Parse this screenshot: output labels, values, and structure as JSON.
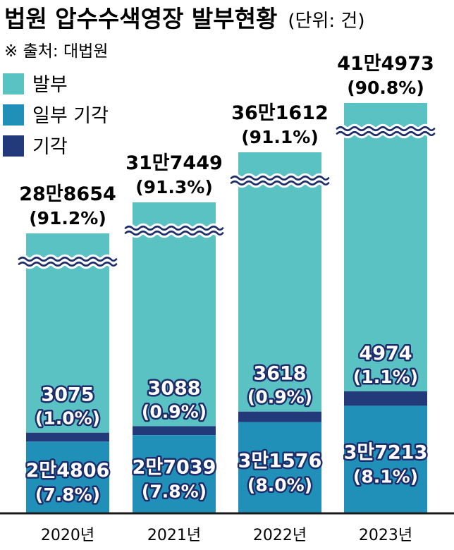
{
  "header": {
    "title": "법원 압수수색영장 발부현황",
    "unit": "(단위: 건)",
    "source": "※ 출처: 대법원"
  },
  "colors": {
    "issued": "#5bc2c4",
    "partial": "#2090b8",
    "rejected": "#233a7a",
    "wave": "#1d2d6b",
    "axis": "#1a1a1a"
  },
  "chart_data": {
    "type": "bar",
    "stacked": true,
    "y_axis_broken": true,
    "categories": [
      "2020년",
      "2021년",
      "2022년",
      "2023년"
    ],
    "series": [
      {
        "name": "발부",
        "values": [
          288654,
          317449,
          361612,
          414973
        ],
        "labels": [
          "28만8654",
          "31만7449",
          "36만1612",
          "41만4973"
        ],
        "percent_labels": [
          "(91.2%)",
          "(91.3%)",
          "(91.1%)",
          "(90.8%)"
        ]
      },
      {
        "name": "일부 기각",
        "values": [
          24806,
          27039,
          31576,
          37213
        ],
        "labels": [
          "2만4806",
          "2만7039",
          "3만1576",
          "3만7213"
        ],
        "percent_labels": [
          "(7.8%)",
          "(7.8%)",
          "(8.0%)",
          "(8.1%)"
        ]
      },
      {
        "name": "기각",
        "values": [
          3075,
          3088,
          3618,
          4974
        ],
        "labels": [
          "3075",
          "3088",
          "3618",
          "4974"
        ],
        "percent_labels": [
          "(1.0%)",
          "(0.9%)",
          "(0.9%)",
          "(1.1%)"
        ]
      }
    ],
    "legend_position": "top-left",
    "grid": false
  }
}
